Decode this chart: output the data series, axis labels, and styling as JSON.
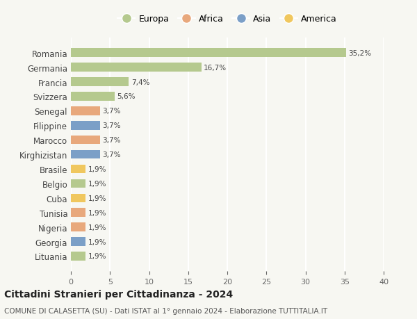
{
  "countries": [
    "Romania",
    "Germania",
    "Francia",
    "Svizzera",
    "Senegal",
    "Filippine",
    "Marocco",
    "Kirghizistan",
    "Brasile",
    "Belgio",
    "Cuba",
    "Tunisia",
    "Nigeria",
    "Georgia",
    "Lituania"
  ],
  "values": [
    35.2,
    16.7,
    7.4,
    5.6,
    3.7,
    3.7,
    3.7,
    3.7,
    1.9,
    1.9,
    1.9,
    1.9,
    1.9,
    1.9,
    1.9
  ],
  "labels": [
    "35,2%",
    "16,7%",
    "7,4%",
    "5,6%",
    "3,7%",
    "3,7%",
    "3,7%",
    "3,7%",
    "1,9%",
    "1,9%",
    "1,9%",
    "1,9%",
    "1,9%",
    "1,9%",
    "1,9%"
  ],
  "categories": [
    "Europa",
    "Europa",
    "Europa",
    "Europa",
    "Africa",
    "Asia",
    "Africa",
    "Asia",
    "America",
    "Europa",
    "America",
    "Africa",
    "Africa",
    "Asia",
    "Europa"
  ],
  "colors": {
    "Europa": "#b5c98e",
    "Africa": "#e8a87c",
    "Asia": "#7b9fc7",
    "America": "#f0c75e"
  },
  "legend_order": [
    "Europa",
    "Africa",
    "Asia",
    "America"
  ],
  "xlim": [
    0,
    40
  ],
  "xticks": [
    0,
    5,
    10,
    15,
    20,
    25,
    30,
    35,
    40
  ],
  "title": "Cittadini Stranieri per Cittadinanza - 2024",
  "subtitle": "COMUNE DI CALASETTA (SU) - Dati ISTAT al 1° gennaio 2024 - Elaborazione TUTTITALIA.IT",
  "background_color": "#f7f7f2",
  "grid_color": "#ffffff",
  "bar_height": 0.6
}
